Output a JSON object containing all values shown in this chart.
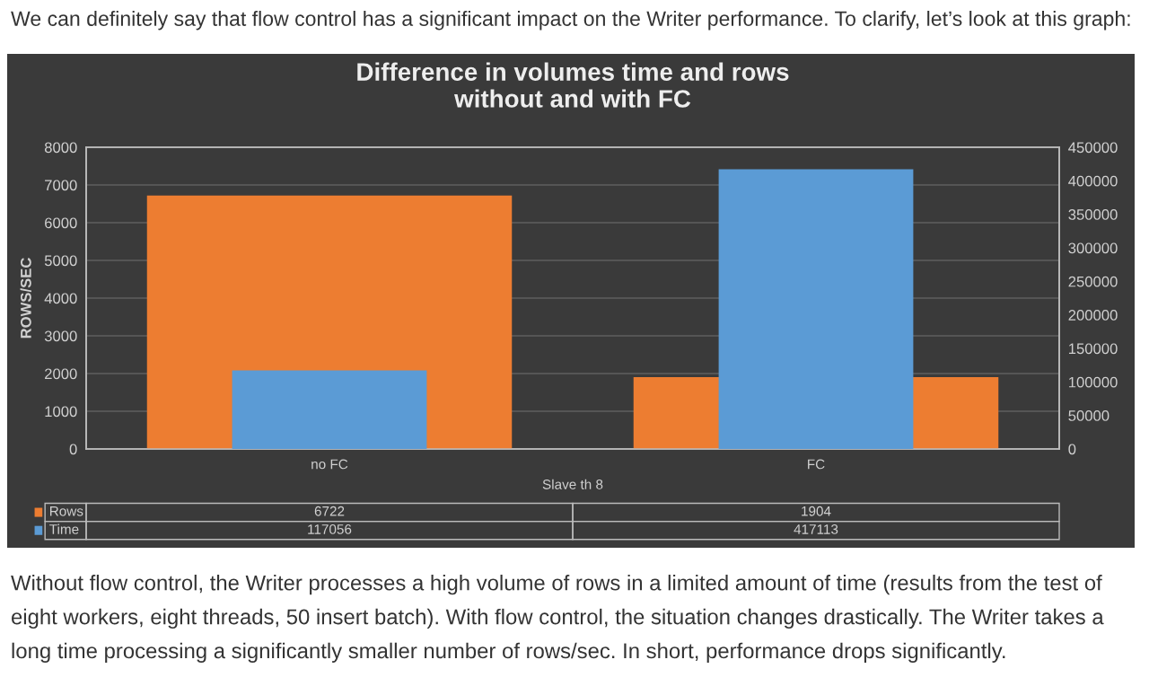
{
  "chart_data": {
    "type": "bar",
    "title": "Difference in volumes time and rows\nwithout and with FC",
    "xlabel": "Slave th 8",
    "ylabel": "ROWS/SEC",
    "categories": [
      "no FC",
      "FC"
    ],
    "series": [
      {
        "name": "Rows",
        "color": "#ed7d31",
        "values": [
          6722,
          1904
        ]
      },
      {
        "name": "Time",
        "color": "#5b9bd5",
        "values": [
          117056,
          417113
        ],
        "axis": "y2"
      }
    ],
    "ylim": [
      0,
      8000
    ],
    "yticks": [
      0,
      1000,
      2000,
      3000,
      4000,
      5000,
      6000,
      7000,
      8000
    ],
    "y2lim": [
      0,
      450000
    ],
    "y2ticks": [
      0,
      50000,
      100000,
      150000,
      200000,
      250000,
      300000,
      350000,
      400000,
      450000
    ],
    "grid": "y",
    "legend": "bottom left",
    "data_labels": true,
    "annotations": [
      "We can definitely say that flow control has a significant impact on the Writer performance. To clarify, let’s look at this graph:",
      "Without flow control, the Writer processes a high volume of rows in a limited amount of time (results from the test of eight workers, eight threads, 50 insert batch). With flow control, the situation changes drastically. The Writer takes a long time processing a significantly smaller number of rows/sec. In short, performance drops significantly."
    ]
  }
}
